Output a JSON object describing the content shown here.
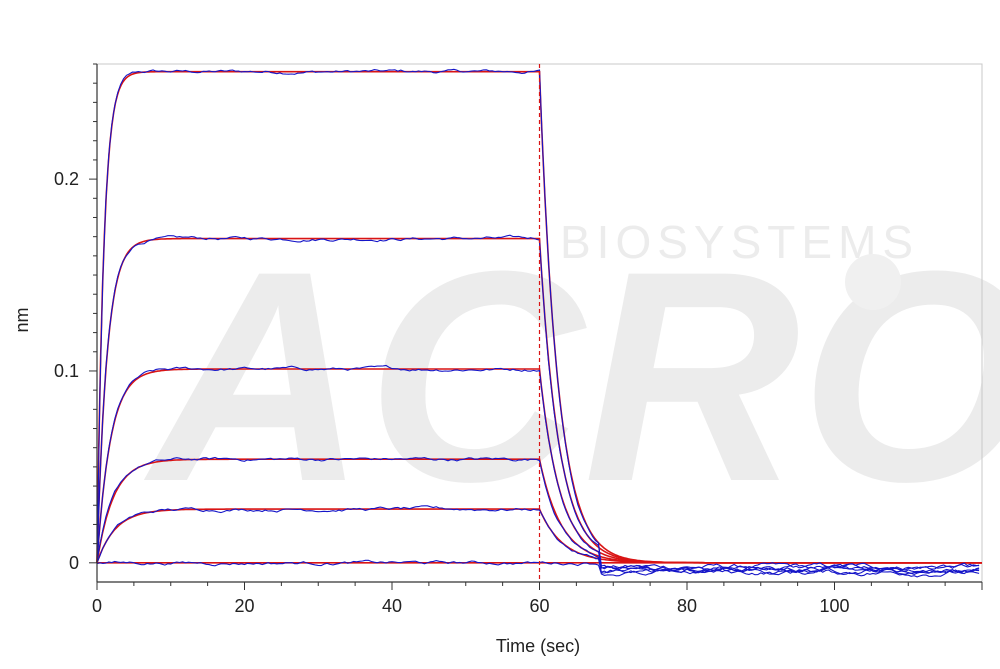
{
  "chart_data": {
    "type": "line",
    "title": "",
    "xlabel": "Time (sec)",
    "ylabel": "nm",
    "xlim": [
      0,
      120
    ],
    "ylim": [
      -0.01,
      0.26
    ],
    "x_ticks": [
      0,
      20,
      40,
      60,
      80,
      100
    ],
    "y_ticks": [
      0,
      0.1,
      0.2
    ],
    "x_tick_labels": [
      "0",
      "20",
      "40",
      "60",
      "80",
      "100"
    ],
    "y_tick_labels": [
      "0",
      "0.1",
      "0.2"
    ],
    "grid": false,
    "legend": "none",
    "watermark_text": [
      "ACRO",
      "BIOSYSTEMS"
    ],
    "association_end": 60,
    "colors": {
      "measured": "#1515c8",
      "fit": "#d91414",
      "marker_line": "#d91414",
      "axis": "#333333",
      "frame": "#c8c8c8"
    },
    "series": [
      {
        "plateau": 0.256,
        "k_on": 1.1,
        "k_off": 0.4,
        "end_offset": 0.0
      },
      {
        "plateau": 0.169,
        "k_on": 0.75,
        "k_off": 0.38,
        "end_offset": 0.0
      },
      {
        "plateau": 0.101,
        "k_on": 0.55,
        "k_off": 0.36,
        "end_offset": 0.0
      },
      {
        "plateau": 0.054,
        "k_on": 0.45,
        "k_off": 0.34,
        "end_offset": 0.0
      },
      {
        "plateau": 0.028,
        "k_on": 0.4,
        "k_off": 0.32,
        "end_offset": 0.0
      },
      {
        "plateau": 0.0,
        "k_on": 0.4,
        "k_off": 0.3,
        "end_offset": 0.0
      }
    ]
  }
}
